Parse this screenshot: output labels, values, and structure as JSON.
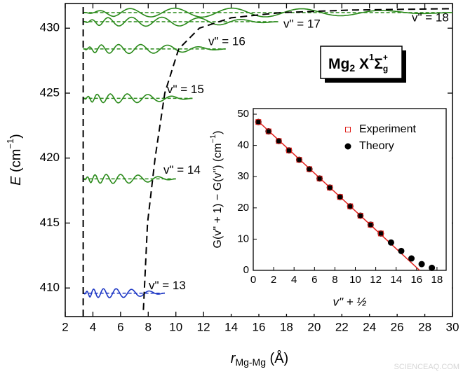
{
  "chart_data": [
    {
      "type": "line",
      "xlabel": {
        "main": "r",
        "sub": "Mg-Mg",
        "unit": " (Å)"
      },
      "ylabel": {
        "main": "E",
        "unit": " (cm",
        "sup": "−1",
        "close": ")"
      },
      "xlim": [
        2,
        30
      ],
      "xticks": [
        2,
        4,
        6,
        8,
        10,
        12,
        14,
        16,
        18,
        20,
        22,
        24,
        26,
        28,
        30
      ],
      "ylim": [
        407.8,
        431.9
      ],
      "yticks": [
        410,
        415,
        420,
        425,
        430
      ],
      "potential": [
        {
          "x": [
            3.3,
            3.3
          ],
          "values": [
            407.8,
            431.9
          ],
          "color": "#000000"
        },
        {
          "x": [
            7.65,
            7.95,
            8.5,
            9.2,
            10.2,
            11.7,
            14,
            17.6,
            22.7,
            30
          ],
          "values": [
            408.3,
            415,
            420,
            425,
            428.4,
            430,
            430.8,
            431.2,
            431.4,
            431.5
          ],
          "color": "#000000"
        }
      ],
      "levels": [
        {
          "label": "v\" = 13",
          "energy": 409.6,
          "x_range": [
            3.3,
            9.2
          ],
          "color": "#1c36c4"
        },
        {
          "label": "v\" = 14",
          "energy": 418.4,
          "x_range": [
            3.3,
            10
          ],
          "color": "#2a8a1a"
        },
        {
          "label": "v\" = 15",
          "energy": 424.6,
          "x_range": [
            3.3,
            11.2
          ],
          "color": "#2a8a1a"
        },
        {
          "label": "v\" = 16",
          "energy": 428.4,
          "x_range": [
            3.3,
            13.6
          ],
          "color": "#2a8a1a"
        },
        {
          "label": "v\" = 17",
          "energy": 430.5,
          "x_range": [
            3.3,
            17.4
          ],
          "color": "#2a8a1a"
        },
        {
          "label": "v\" = 18",
          "energy": 431.2,
          "x_range": [
            3.3,
            30
          ],
          "color": "#2a8a1a"
        }
      ],
      "annotation": {
        "molecule": "Mg",
        "molecule_sub": "2",
        "state": " X",
        "state_sup": "1",
        "symbol": "Σ",
        "symbol_sup": "+",
        "symbol_sub": "g"
      },
      "watermark": "SCIENCEAQ.COM"
    },
    {
      "type": "scatter",
      "xlabel": "v\" + ½",
      "ylabel": {
        "main": "G(v\" + 1) − G(v\") (cm",
        "sup": "−1",
        "close": ")"
      },
      "xlim": [
        0,
        18.9
      ],
      "xticks": [
        0,
        2,
        4,
        6,
        8,
        10,
        12,
        14,
        16,
        18
      ],
      "ylim": [
        0,
        51.8
      ],
      "yticks": [
        0,
        10,
        20,
        30,
        40,
        50
      ],
      "legend": "upper right",
      "fit": {
        "x": [
          0.5,
          16.3
        ],
        "values": [
          47.7,
          0
        ],
        "color": "#e0201c"
      },
      "series": [
        {
          "name": "Experiment",
          "color": "#e0201c",
          "marker": "open-square",
          "x": [
            0.5,
            1.5,
            2.5,
            3.5,
            4.5,
            5.5,
            6.5,
            7.5,
            8.5,
            9.5,
            10.5,
            11.5,
            12.5
          ],
          "values": [
            47.5,
            44.5,
            41.4,
            38.4,
            35.4,
            32.4,
            29.4,
            26.5,
            23.5,
            20.5,
            17.5,
            14.6,
            11.8
          ]
        },
        {
          "name": "Theory",
          "color": "#000000",
          "marker": "filled-circle",
          "x": [
            0.5,
            1.5,
            2.5,
            3.5,
            4.5,
            5.5,
            6.5,
            7.5,
            8.5,
            9.5,
            10.5,
            11.5,
            12.5,
            13.5,
            14.5,
            15.5,
            16.5,
            17.5
          ],
          "values": [
            47.5,
            44.5,
            41.4,
            38.4,
            35.4,
            32.4,
            29.4,
            26.5,
            23.5,
            20.5,
            17.5,
            14.6,
            11.8,
            8.9,
            6.2,
            3.8,
            2.0,
            0.8
          ]
        }
      ]
    }
  ]
}
